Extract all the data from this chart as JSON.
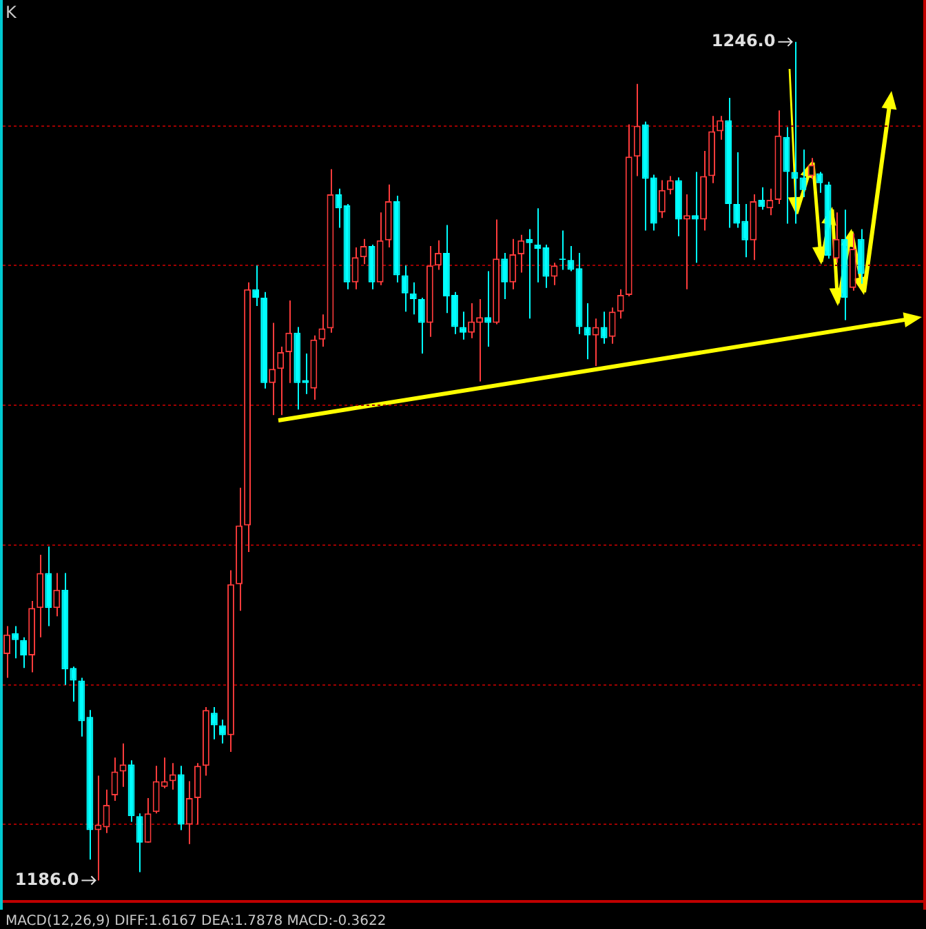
{
  "chart_data": {
    "type": "candlestick",
    "title": "K",
    "categories": [
      null,
      null,
      null,
      null,
      null,
      null,
      null,
      null,
      null,
      null,
      null,
      null,
      null,
      null,
      null,
      null,
      null,
      null,
      null,
      null,
      null,
      null,
      null,
      null,
      null,
      null,
      null,
      null,
      null,
      null,
      null,
      null,
      null,
      null,
      null,
      null,
      null,
      null,
      null,
      null,
      null,
      null,
      null,
      null,
      null,
      null,
      null,
      null,
      null,
      null,
      null,
      null,
      null,
      null,
      null,
      null,
      null,
      null,
      null,
      null,
      null,
      null,
      null,
      null,
      null,
      null,
      null,
      null,
      null,
      null,
      null,
      null,
      null,
      null,
      null,
      null,
      null,
      null,
      null,
      null,
      null,
      null,
      null,
      null,
      null,
      null,
      null,
      null,
      null,
      null,
      null,
      null,
      null,
      null,
      null,
      null,
      null,
      null,
      null,
      null,
      null,
      null,
      null,
      null,
      null,
      null,
      null,
      null,
      null,
      null,
      null
    ],
    "ohlc": [
      [
        1202.2,
        1204.2,
        1200.5,
        1203.6
      ],
      [
        1203.7,
        1204.2,
        1201.9,
        1203.2
      ],
      [
        1203.2,
        1203.4,
        1201.2,
        1202.1
      ],
      [
        1202.1,
        1206.0,
        1200.9,
        1205.5
      ],
      [
        1205.5,
        1209.3,
        1203.4,
        1208.0
      ],
      [
        1208.0,
        1209.9,
        1204.2,
        1205.5
      ],
      [
        1205.5,
        1208.0,
        1204.9,
        1206.8
      ],
      [
        1206.8,
        1208.0,
        1200.0,
        1201.1
      ],
      [
        1201.2,
        1201.3,
        1198.8,
        1200.3
      ],
      [
        1200.3,
        1200.5,
        1196.3,
        1197.4
      ],
      [
        1197.7,
        1198.2,
        1187.5,
        1189.6
      ],
      [
        1189.6,
        1193.5,
        1186.0,
        1190.0
      ],
      [
        1189.8,
        1192.5,
        1189.4,
        1191.4
      ],
      [
        1192.1,
        1194.8,
        1191.7,
        1193.8
      ],
      [
        1193.8,
        1195.8,
        1192.7,
        1194.3
      ],
      [
        1194.3,
        1194.6,
        1190.2,
        1190.6
      ],
      [
        1190.6,
        1190.8,
        1186.6,
        1188.7
      ],
      [
        1188.7,
        1191.9,
        1188.7,
        1190.8
      ],
      [
        1190.9,
        1194.2,
        1190.8,
        1193.1
      ],
      [
        1192.7,
        1194.8,
        1192.6,
        1193.1
      ],
      [
        1193.1,
        1194.4,
        1192.5,
        1193.6
      ],
      [
        1193.6,
        1194.2,
        1189.6,
        1190.0
      ],
      [
        1190.0,
        1193.1,
        1188.6,
        1191.9
      ],
      [
        1191.9,
        1194.4,
        1190.0,
        1194.2
      ],
      [
        1194.2,
        1198.4,
        1193.5,
        1198.2
      ],
      [
        1198.0,
        1198.4,
        1196.1,
        1197.1
      ],
      [
        1197.1,
        1197.5,
        1195.8,
        1196.4
      ],
      [
        1196.4,
        1208.2,
        1195.2,
        1207.2
      ],
      [
        1207.2,
        1214.1,
        1205.3,
        1211.4
      ],
      [
        1211.4,
        1228.8,
        1209.5,
        1228.3
      ],
      [
        1228.3,
        1230.0,
        1227.1,
        1227.7
      ],
      [
        1227.7,
        1228.1,
        1221.2,
        1221.6
      ],
      [
        1221.6,
        1225.9,
        1219.3,
        1222.6
      ],
      [
        1222.6,
        1224.2,
        1219.3,
        1223.8
      ],
      [
        1223.8,
        1227.5,
        1221.6,
        1225.2
      ],
      [
        1225.2,
        1225.6,
        1219.7,
        1221.6
      ],
      [
        1221.8,
        1223.7,
        1220.8,
        1221.6
      ],
      [
        1221.2,
        1225.0,
        1220.4,
        1224.7
      ],
      [
        1224.7,
        1226.5,
        1224.2,
        1225.5
      ],
      [
        1225.5,
        1236.9,
        1225.2,
        1235.1
      ],
      [
        1235.1,
        1235.5,
        1232.7,
        1234.1
      ],
      [
        1234.3,
        1234.4,
        1228.3,
        1228.8
      ],
      [
        1228.8,
        1231.3,
        1228.3,
        1230.6
      ],
      [
        1230.6,
        1231.9,
        1230.1,
        1231.4
      ],
      [
        1231.4,
        1231.5,
        1228.3,
        1228.8
      ],
      [
        1228.8,
        1233.8,
        1228.6,
        1231.8
      ],
      [
        1231.8,
        1235.8,
        1231.3,
        1234.6
      ],
      [
        1234.6,
        1235.0,
        1228.8,
        1229.3
      ],
      [
        1229.3,
        1230.0,
        1226.7,
        1228.0
      ],
      [
        1228.0,
        1228.8,
        1226.5,
        1227.6
      ],
      [
        1227.6,
        1227.7,
        1223.7,
        1225.9
      ],
      [
        1225.9,
        1231.4,
        1224.9,
        1230.0
      ],
      [
        1230.0,
        1231.8,
        1229.7,
        1230.9
      ],
      [
        1230.9,
        1232.9,
        1226.6,
        1227.8
      ],
      [
        1227.9,
        1228.1,
        1225.1,
        1225.6
      ],
      [
        1225.6,
        1226.7,
        1224.7,
        1225.2
      ],
      [
        1225.2,
        1227.3,
        1224.8,
        1226.0
      ],
      [
        1225.9,
        1227.6,
        1221.7,
        1226.3
      ],
      [
        1226.3,
        1229.6,
        1224.2,
        1225.9
      ],
      [
        1225.9,
        1233.3,
        1225.8,
        1230.5
      ],
      [
        1230.5,
        1230.9,
        1227.6,
        1228.8
      ],
      [
        1228.8,
        1231.9,
        1228.3,
        1230.8
      ],
      [
        1230.8,
        1232.2,
        1229.5,
        1231.8
      ],
      [
        1231.9,
        1232.6,
        1226.2,
        1231.6
      ],
      [
        1231.5,
        1234.1,
        1228.8,
        1231.2
      ],
      [
        1231.3,
        1231.5,
        1228.4,
        1229.2
      ],
      [
        1229.2,
        1230.2,
        1228.6,
        1230.0
      ],
      [
        1230.5,
        1232.5,
        1229.7,
        1230.4
      ],
      [
        1230.4,
        1231.4,
        1229.6,
        1229.7
      ],
      [
        1229.8,
        1230.9,
        1225.1,
        1225.6
      ],
      [
        1225.6,
        1227.3,
        1223.3,
        1225.0
      ],
      [
        1225.0,
        1226.2,
        1222.8,
        1225.6
      ],
      [
        1225.6,
        1226.7,
        1224.4,
        1224.8
      ],
      [
        1224.9,
        1227.0,
        1224.4,
        1226.7
      ],
      [
        1226.7,
        1228.3,
        1226.2,
        1227.9
      ],
      [
        1227.9,
        1240.1,
        1227.8,
        1237.8
      ],
      [
        1237.8,
        1243.0,
        1236.4,
        1240.0
      ],
      [
        1240.1,
        1240.3,
        1232.5,
        1236.2
      ],
      [
        1236.3,
        1236.5,
        1232.5,
        1233.0
      ],
      [
        1233.8,
        1236.1,
        1233.4,
        1235.4
      ],
      [
        1235.4,
        1236.4,
        1235.1,
        1236.1
      ],
      [
        1236.1,
        1236.3,
        1232.1,
        1233.3
      ],
      [
        1233.3,
        1235.1,
        1228.3,
        1233.6
      ],
      [
        1233.6,
        1236.7,
        1230.2,
        1233.3
      ],
      [
        1233.3,
        1238.2,
        1232.5,
        1236.4
      ],
      [
        1236.4,
        1240.7,
        1235.9,
        1239.6
      ],
      [
        1239.6,
        1240.7,
        1239.0,
        1240.4
      ],
      [
        1240.4,
        1242.0,
        1232.7,
        1234.4
      ],
      [
        1234.4,
        1238.1,
        1232.7,
        1233.0
      ],
      [
        1233.2,
        1234.4,
        1230.6,
        1231.8
      ],
      [
        1231.8,
        1235.1,
        1230.4,
        1234.6
      ],
      [
        1234.7,
        1235.6,
        1234.0,
        1234.2
      ],
      [
        1234.1,
        1235.5,
        1233.6,
        1234.7
      ],
      [
        1234.7,
        1241.1,
        1234.4,
        1239.3
      ],
      [
        1239.2,
        1239.9,
        1233.0,
        1236.7
      ],
      [
        1236.7,
        1246.0,
        1233.0,
        1236.2
      ],
      [
        1236.3,
        1238.3,
        1234.9,
        1235.4
      ],
      [
        1236.4,
        1237.7,
        1236.2,
        1237.2
      ],
      [
        1236.6,
        1236.7,
        1235.2,
        1235.9
      ],
      [
        1235.8,
        1236.0,
        1230.5,
        1230.7
      ],
      [
        1230.5,
        1233.8,
        1230.2,
        1231.9
      ],
      [
        1231.9,
        1234.0,
        1226.1,
        1227.7
      ],
      [
        1228.4,
        1232.3,
        1228.2,
        1231.2
      ],
      [
        1231.9,
        1232.6,
        1228.7,
        1229.4
      ],
      null,
      null,
      null,
      null,
      null,
      null,
      null
    ],
    "colors": [
      "#ff3c3c",
      "#00ffff",
      "#00ffff",
      "#ff3c3c",
      "#ff3c3c",
      "#00ffff",
      "#ff3c3c",
      "#00ffff",
      "#00ffff",
      "#00ffff",
      "#00ffff",
      "#ff3c3c",
      "#ff3c3c",
      "#ff3c3c",
      "#ff3c3c",
      "#00ffff",
      "#00ffff",
      "#ff3c3c",
      "#ff3c3c",
      "#ff3c3c",
      "#ff3c3c",
      "#00ffff",
      "#ff3c3c",
      "#ff3c3c",
      "#ff3c3c",
      "#00ffff",
      "#00ffff",
      "#ff3c3c",
      "#ff3c3c",
      "#ff3c3c",
      "#00ffff",
      "#00ffff",
      "#ff3c3c",
      "#ff3c3c",
      "#ff3c3c",
      "#00ffff",
      "#00ffff",
      "#ff3c3c",
      "#ff3c3c",
      "#ff3c3c",
      "#00ffff",
      "#00ffff",
      "#ff3c3c",
      "#ff3c3c",
      "#00ffff",
      "#ff3c3c",
      "#ff3c3c",
      "#00ffff",
      "#00ffff",
      "#00ffff",
      "#00ffff",
      "#ff3c3c",
      "#ff3c3c",
      "#00ffff",
      "#00ffff",
      "#00ffff",
      "#ff3c3c",
      "#ff3c3c",
      "#00ffff",
      "#ff3c3c",
      "#00ffff",
      "#ff3c3c",
      "#ff3c3c",
      "#00ffff",
      "#00ffff",
      "#00ffff",
      "#ff3c3c",
      "#00ffff",
      "#00ffff",
      "#00ffff",
      "#00ffff",
      "#ff3c3c",
      "#00ffff",
      "#ff3c3c",
      "#ff3c3c",
      "#ff3c3c",
      "#ff3c3c",
      "#00ffff",
      "#00ffff",
      "#ff3c3c",
      "#ff3c3c",
      "#00ffff",
      "#ff3c3c",
      "#00ffff",
      "#ff3c3c",
      "#ff3c3c",
      "#ff3c3c",
      "#00ffff",
      "#00ffff",
      "#00ffff",
      "#ff3c3c",
      "#00ffff",
      "#ff3c3c",
      "#ff3c3c",
      "#00ffff",
      "#00ffff",
      "#00ffff",
      "#ff3c3c",
      "#00ffff",
      "#00ffff",
      "#ff3c3c",
      "#00ffff",
      "#ff3c3c",
      "#00ffff",
      null,
      null,
      null,
      null,
      null,
      null,
      null
    ],
    "ylim": [
      1184.5,
      1249
    ],
    "yticks": [
      {
        "value": 1190,
        "label": null
      },
      {
        "value": 1200,
        "label": null
      },
      {
        "value": 1210,
        "label": null
      },
      {
        "value": 1220,
        "label": null
      },
      {
        "value": 1230,
        "label": null
      },
      {
        "value": 1240,
        "label": null
      }
    ],
    "grid": "y",
    "tick_labels": false,
    "annotations": [
      "1246.0",
      "1186.0",
      "MACD(12,26,9) DIFF:1.6167 DEA:1.7878 MACD:-0.3622"
    ]
  }
}
